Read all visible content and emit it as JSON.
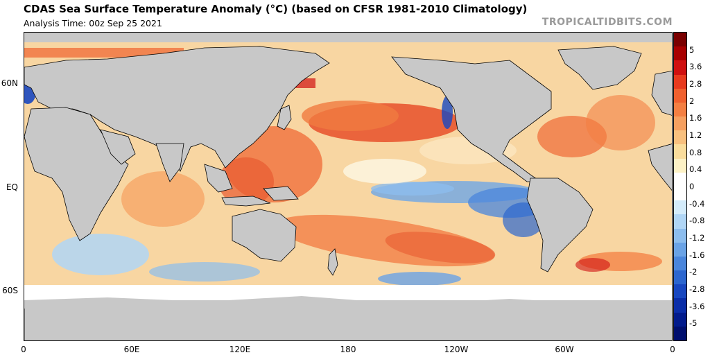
{
  "header": {
    "title": "CDAS Sea Surface Temperature Anomaly (°C) (based on CFSR 1981-2010 Climatology)",
    "subtitle": "Analysis Time: 00z Sep 25 2021",
    "credit": "TROPICALTIDBITS.COM"
  },
  "map": {
    "lat_labels": [
      "60N",
      "EQ",
      "60S"
    ],
    "lon_labels": [
      "0",
      "60E",
      "120E",
      "180",
      "120W",
      "60W",
      "0"
    ],
    "land_color": "#c8c8c8",
    "ice_color": "#ffffff"
  },
  "colorbar": {
    "labels": [
      "5",
      "3.6",
      "2.8",
      "2",
      "1.6",
      "1.2",
      "0.8",
      "0.4",
      "0",
      "-0.4",
      "-0.8",
      "-1.2",
      "-1.6",
      "-2",
      "-2.8",
      "-3.6",
      "-5"
    ],
    "colors": [
      "#7a0000",
      "#a80000",
      "#d01010",
      "#e83a1e",
      "#f0602e",
      "#f47f42",
      "#f6a060",
      "#f8c07e",
      "#fadd9c",
      "#fdf2c6",
      "#ffffff",
      "#ffffff",
      "#d4ecfb",
      "#b0d6f6",
      "#8cbdee",
      "#6aa3e6",
      "#4a86dc",
      "#2c66cf",
      "#1847c0",
      "#0a2da8",
      "#021b8c",
      "#000f6e"
    ]
  }
}
